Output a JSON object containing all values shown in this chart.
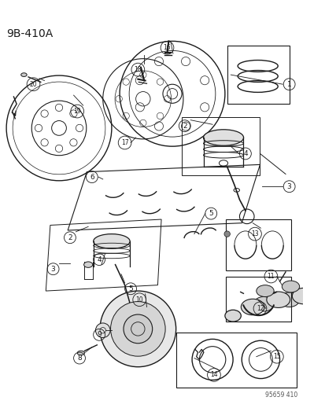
{
  "title": "9B-410A",
  "watermark": "95659 410",
  "bg_color": "#ffffff",
  "line_color": "#1a1a1a",
  "fig_width": 4.14,
  "fig_height": 5.33,
  "dpi": 100
}
